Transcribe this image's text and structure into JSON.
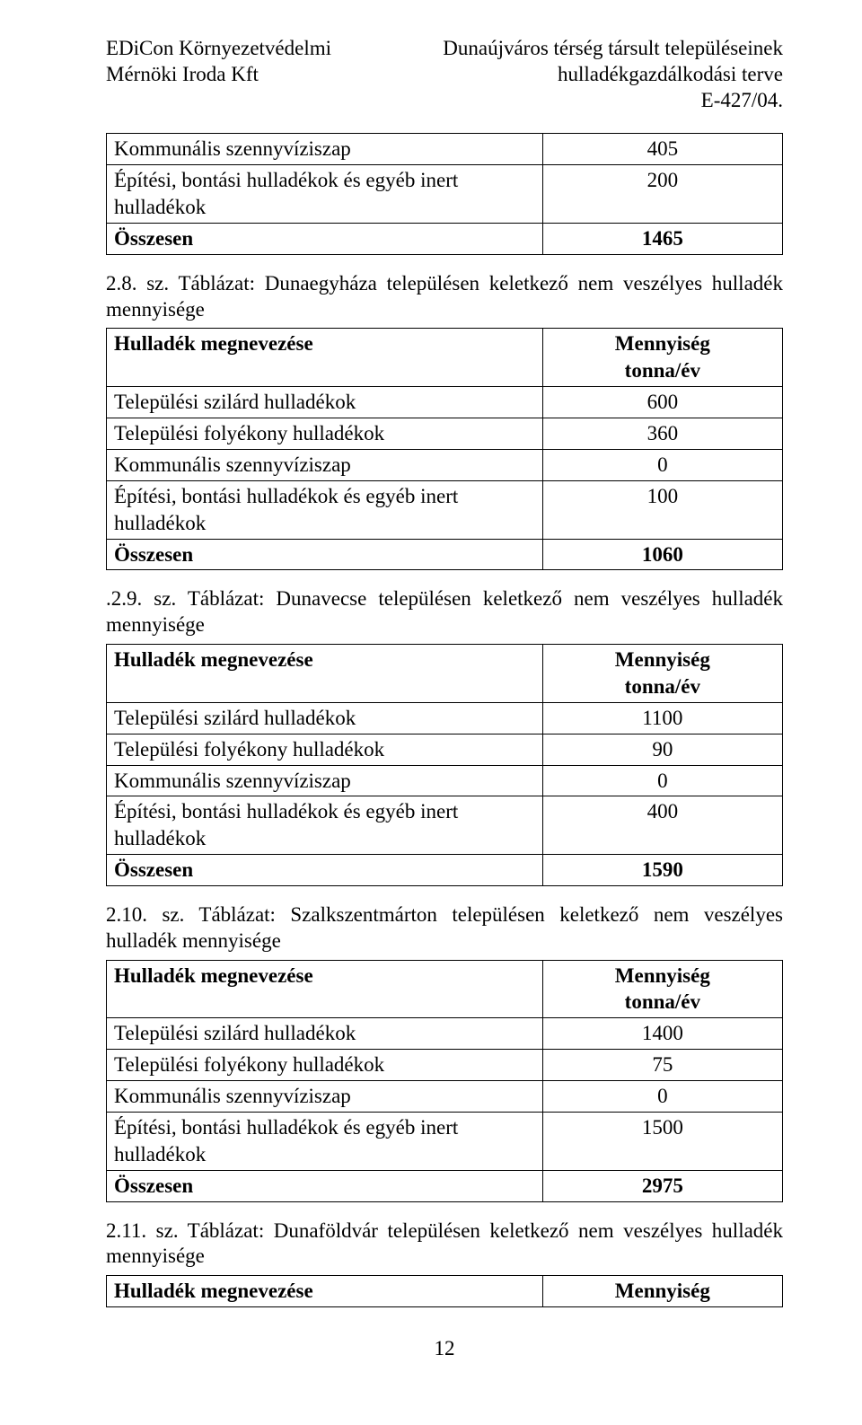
{
  "header": {
    "left1": "EDiCon  Környezetvédelmi",
    "left2": "Mérnöki Iroda Kft",
    "right1": "Dunaújváros térség társult településeinek",
    "right2": "hulladékgazdálkodási terve",
    "right3": "E-427/04."
  },
  "table_top": {
    "rows": [
      {
        "label": "Kommunális szennyvíziszap",
        "value": "405",
        "bold": false
      },
      {
        "label": "Építési, bontási hulladékok és egyéb inert hulladékok",
        "value": "200",
        "bold": false
      },
      {
        "label": "Összesen",
        "value": "1465",
        "bold": true
      }
    ]
  },
  "caption1": "2.8. sz. Táblázat: Dunaegyháza településen keletkező nem veszélyes hulladék mennyisége",
  "table1": {
    "header_label": "Hulladék megnevezése",
    "header_value_l1": "Mennyiség",
    "header_value_l2": "tonna/év",
    "rows": [
      {
        "label": "Települési szilárd hulladékok",
        "value": "600",
        "bold": false
      },
      {
        "label": "Települési folyékony hulladékok",
        "value": "360",
        "bold": false
      },
      {
        "label": "Kommunális szennyvíziszap",
        "value": "0",
        "bold": false
      },
      {
        "label": "Építési, bontási hulladékok és egyéb inert hulladékok",
        "value": "100",
        "bold": false
      },
      {
        "label": "Összesen",
        "value": "1060",
        "bold": true
      }
    ]
  },
  "caption2": ".2.9. sz. Táblázat: Dunavecse településen keletkező nem veszélyes hulladék mennyisége",
  "table2": {
    "header_label": "Hulladék megnevezése",
    "header_value_l1": "Mennyiség",
    "header_value_l2": "tonna/év",
    "rows": [
      {
        "label": "Települési szilárd hulladékok",
        "value": "1100",
        "bold": false
      },
      {
        "label": "Települési folyékony hulladékok",
        "value": "90",
        "bold": false
      },
      {
        "label": "Kommunális szennyvíziszap",
        "value": "0",
        "bold": false
      },
      {
        "label": "Építési, bontási hulladékok és egyéb inert hulladékok",
        "value": "400",
        "bold": false
      },
      {
        "label": "Összesen",
        "value": "1590",
        "bold": true
      }
    ]
  },
  "caption3": "2.10. sz. Táblázat: Szalkszentmárton településen keletkező nem veszélyes hulladék mennyisége",
  "table3": {
    "header_label": "Hulladék megnevezése",
    "header_value_l1": "Mennyiség",
    "header_value_l2": "tonna/év",
    "rows": [
      {
        "label": "Települési szilárd hulladékok",
        "value": "1400",
        "bold": false
      },
      {
        "label": "Települési folyékony hulladékok",
        "value": "75",
        "bold": false
      },
      {
        "label": "Kommunális szennyvíziszap",
        "value": "0",
        "bold": false
      },
      {
        "label": "Építési, bontási hulladékok és egyéb inert hulladékok",
        "value": "1500",
        "bold": false
      },
      {
        "label": "Összesen",
        "value": "2975",
        "bold": true
      }
    ]
  },
  "caption4": "2.11. sz. Táblázat:  Dunaföldvár településen keletkező nem veszélyes hulladék mennyisége",
  "table4": {
    "header_label": "Hulladék megnevezése",
    "header_value": "Mennyiség"
  },
  "page_number": "12"
}
